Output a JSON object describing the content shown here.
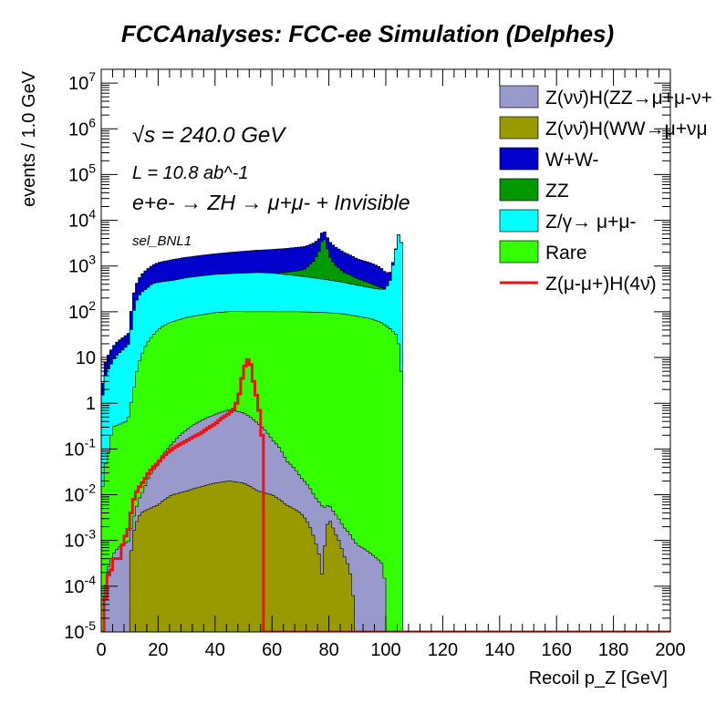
{
  "chart_data": {
    "type": "area",
    "title": "FCCAnalyses: FCC-ee Simulation (Delphes)",
    "xlabel": "Recoil p_Z [GeV]",
    "ylabel": "events / 1.0 GeV",
    "xlim": [
      0,
      200
    ],
    "ylim": [
      1e-05,
      20000000
    ],
    "y_scale": "log",
    "stacked": true,
    "x_ticks": [
      0,
      20,
      40,
      60,
      80,
      100,
      120,
      140,
      160,
      180,
      200
    ],
    "y_tick_labels": [
      "10^-5",
      "10^-4",
      "10^-3",
      "10^-2",
      "10^-1",
      "1",
      "10",
      "10^2",
      "10^3",
      "10^4",
      "10^5",
      "10^6",
      "10^7"
    ],
    "annotations": {
      "sqrt_s": "√s = 240.0 GeV",
      "lumi": "L = 10.8 ab^-1",
      "process": "e+e- → ZH → μ+μ- + Invisible",
      "selection": "sel_BNL1"
    },
    "legend_position": "top-right",
    "legend": [
      {
        "key": "zh_zz",
        "label": "Z(νν̄)H(ZZ→μ+μ-ν+",
        "color": "#9999cc",
        "style": "fill"
      },
      {
        "key": "zh_ww",
        "label": "Z(νν̄)H(WW→μ+νμ",
        "color": "#999900",
        "style": "fill"
      },
      {
        "key": "ww",
        "label": "W+W-",
        "color": "#0000cc",
        "style": "fill"
      },
      {
        "key": "zz",
        "label": "ZZ",
        "color": "#009900",
        "style": "fill"
      },
      {
        "key": "zgamma",
        "label": "Z/γ→ μ+μ-",
        "color": "#00ffff",
        "style": "fill"
      },
      {
        "key": "rare",
        "label": "Rare",
        "color": "#33ff00",
        "style": "fill"
      },
      {
        "key": "signal",
        "label": "Z(μ-μ+)H(4ν̄)",
        "color": "#ee1111",
        "style": "line"
      }
    ],
    "stack_order": [
      "zh_ww",
      "zh_zz",
      "rare",
      "zgamma",
      "zz",
      "ww"
    ],
    "series": [
      {
        "key": "zh_ww",
        "x": [
          5,
          10,
          11,
          14,
          20,
          25,
          30,
          35,
          40,
          45,
          50,
          55,
          60,
          65,
          70,
          75,
          78,
          80,
          82,
          85,
          89
        ],
        "y": [
          0,
          0,
          0.0012,
          0.004,
          0.006,
          0.01,
          0.012,
          0.015,
          0.018,
          0.02,
          0.018,
          0.012,
          0.01,
          0.006,
          0.004,
          0.001,
          2e-05,
          0.003,
          0.0015,
          0.0005,
          0
        ]
      },
      {
        "key": "zh_zz",
        "x": [
          1,
          2,
          5,
          10,
          12,
          15,
          20,
          25,
          30,
          35,
          40,
          45,
          50,
          55,
          60,
          65,
          70,
          75,
          80,
          85,
          90,
          95,
          99,
          100
        ],
        "y": [
          1e-05,
          0.0002,
          0.0006,
          0.001,
          0.002,
          0.008,
          0.04,
          0.12,
          0.25,
          0.4,
          0.55,
          0.7,
          0.6,
          0.35,
          0.15,
          0.05,
          0.02,
          0.008,
          0.003,
          0.0015,
          0.0008,
          0.0005,
          0.0003,
          0
        ]
      },
      {
        "key": "rare",
        "x": [
          0,
          1,
          3,
          4,
          9,
          10,
          11,
          12,
          13,
          14,
          15,
          16,
          18,
          20,
          22,
          25,
          30,
          35,
          40,
          45,
          50,
          55,
          60,
          65,
          70,
          75,
          80,
          85,
          90,
          95,
          98,
          100,
          102,
          104,
          105,
          106
        ],
        "y": [
          0,
          0.03,
          0.1,
          0.3,
          0.4,
          0.6,
          1.5,
          3,
          7,
          10,
          15,
          20,
          30,
          40,
          50,
          60,
          75,
          85,
          95,
          100,
          100,
          100,
          100,
          100,
          100,
          98,
          95,
          90,
          80,
          70,
          60,
          50,
          40,
          30,
          10,
          0
        ]
      },
      {
        "key": "zgamma",
        "x": [
          0,
          1,
          2,
          3,
          5,
          8,
          10,
          11,
          12,
          14,
          16,
          18,
          20,
          25,
          30,
          35,
          40,
          45,
          50,
          55,
          60,
          65,
          70,
          75,
          80,
          85,
          90,
          95,
          98,
          100,
          102,
          103,
          104,
          105,
          106
        ],
        "y": [
          0,
          3,
          5,
          6,
          10,
          15,
          20,
          60,
          150,
          250,
          300,
          380,
          400,
          420,
          480,
          520,
          560,
          580,
          600,
          620,
          600,
          550,
          500,
          450,
          400,
          350,
          300,
          260,
          250,
          260,
          500,
          1500,
          3000,
          6500,
          0
        ]
      },
      {
        "key": "zz",
        "x": [
          0,
          10,
          60,
          65,
          70,
          72,
          75,
          77,
          78,
          79,
          80,
          82,
          85,
          90,
          100,
          106
        ],
        "y": [
          0,
          0,
          0,
          80,
          200,
          300,
          800,
          1800,
          4000,
          2500,
          1200,
          600,
          300,
          150,
          0,
          0
        ]
      },
      {
        "key": "ww",
        "x": [
          0,
          2,
          5,
          10,
          12,
          15,
          20,
          25,
          30,
          35,
          40,
          45,
          50,
          55,
          60,
          65,
          70,
          75,
          80,
          85,
          90,
          95,
          98,
          100,
          102,
          104,
          106
        ],
        "y": [
          0,
          5,
          10,
          15,
          200,
          450,
          750,
          900,
          1000,
          1100,
          1200,
          1300,
          1400,
          1500,
          1600,
          1700,
          1800,
          1900,
          1800,
          1300,
          900,
          750,
          600,
          400,
          200,
          50,
          0
        ]
      },
      {
        "key": "signal",
        "x": [
          0,
          1,
          2,
          3,
          4,
          5,
          6,
          8,
          10,
          12,
          15,
          20,
          25,
          30,
          35,
          40,
          43,
          45,
          47,
          48,
          49,
          50,
          51,
          52,
          53,
          54,
          55,
          56,
          57,
          58,
          60,
          100,
          200
        ],
        "y": [
          1e-05,
          1e-05,
          0.0001,
          0.00025,
          0.0002,
          0.0006,
          0.0002,
          0.001,
          0.002,
          0.01,
          0.02,
          0.05,
          0.1,
          0.15,
          0.22,
          0.35,
          0.5,
          0.6,
          0.8,
          1.2,
          2,
          5,
          8,
          10,
          4,
          2,
          1,
          0.4,
          1e-05,
          1e-05,
          1e-05,
          1e-05,
          1e-05
        ]
      }
    ]
  }
}
